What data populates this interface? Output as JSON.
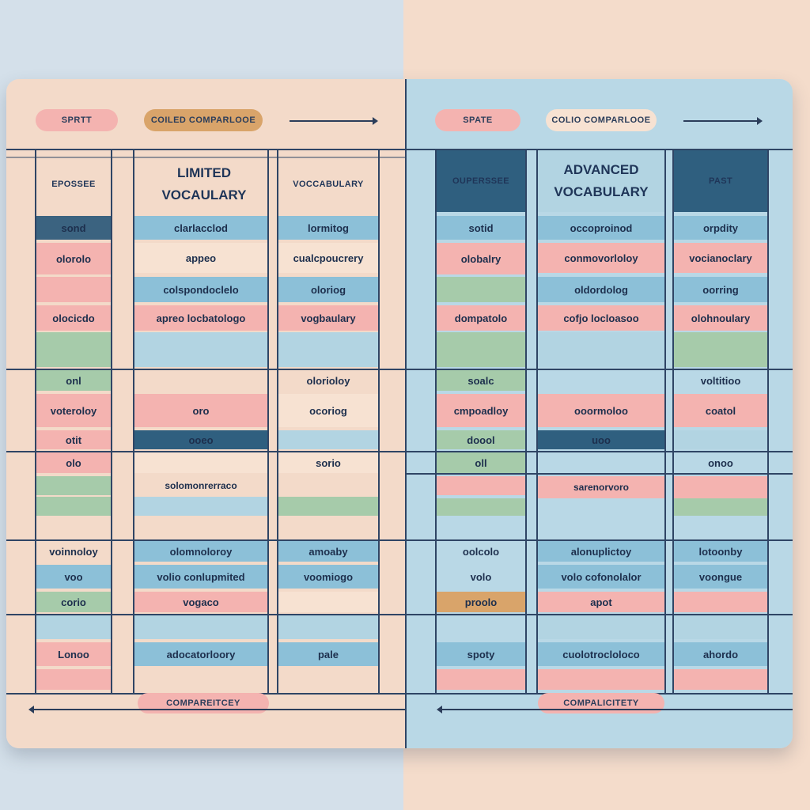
{
  "colors": {
    "pink": "#f4b3b0",
    "blue": "#8cc0d8",
    "green": "#a6cbaa",
    "cream": "#f7e2d2",
    "navy": "#2f5f7f",
    "dark_navy": "#3b6380",
    "light_blue": "#b2d4e2",
    "orange": "#d9a46a"
  },
  "left_panel": {
    "pill_1": "SPRTT",
    "pill_2": "COILED COMPARLOOE",
    "header_col1": "EPOSSEE",
    "header_col2": "LIMITED VOCAULARY",
    "header_col3": "VOCCABULARY",
    "footer_pill": "COMPAREITCEY",
    "rows_group1": [
      {
        "c1": "sond",
        "c2": "clarlacclod",
        "c3": "lormitog"
      },
      {
        "c1": "olorolo",
        "c2": "appeo",
        "c3": "cualcpoucrery"
      },
      {
        "c1": "",
        "c2": "colspondoclelo",
        "c3": "oloriog"
      },
      {
        "c1": "olocicdo",
        "c2": "apreo locbatologo",
        "c3": "vogbaulary"
      }
    ],
    "rows_group2": [
      {
        "c1": "onl",
        "c2": "",
        "c3": "olorioloy"
      },
      {
        "c1": "voteroloy",
        "c2": "oro",
        "c3": "ocoriog"
      },
      {
        "c1": "otit",
        "c2": "ooeo",
        "c3": ""
      },
      {
        "c1": "olo",
        "c2": "",
        "c3": "sorio"
      },
      {
        "c1": "",
        "c2": "solomonrerraco",
        "c3": ""
      }
    ],
    "rows_group3": [
      {
        "c1": "voinnoloy",
        "c2": "olomnoloroy",
        "c3": "amoaby"
      },
      {
        "c1": "voo",
        "c2": "volio conlupmited",
        "c3": "voomiogo"
      },
      {
        "c1": "corio",
        "c2": "vogaco",
        "c3": ""
      },
      {
        "c1": "Lonoo",
        "c2": "adocatorloory",
        "c3": "pale"
      }
    ]
  },
  "right_panel": {
    "pill_1": "SPATE",
    "pill_2": "COLIO COMPARLOOE",
    "header_col1": "OUPERSSEE",
    "header_col2": "ADVANCED VOCABULARY",
    "header_col3": "PAST",
    "footer_pill": "COMPALICITETY",
    "rows_group1": [
      {
        "c1": "sotid",
        "c2": "occoproinod",
        "c3": "orpdity"
      },
      {
        "c1": "olobalry",
        "c2": "conmovorloloy",
        "c3": "vocianoclary"
      },
      {
        "c1": "",
        "c2": "oldordolog",
        "c3": "oorring"
      },
      {
        "c1": "dompatolo",
        "c2": "cofjo locloasoo",
        "c3": "olohnoulary"
      }
    ],
    "rows_group2": [
      {
        "c1": "soalc",
        "c2": "",
        "c3": "voltitioo"
      },
      {
        "c1": "cmpoadloy",
        "c2": "ooormoloo",
        "c3": "coatol"
      },
      {
        "c1": "doool",
        "c2": "uoo",
        "c3": ""
      },
      {
        "c1": "oll",
        "c2": "",
        "c3": "onoo"
      },
      {
        "c1": "",
        "c2": "sarenorvoro",
        "c3": ""
      }
    ],
    "rows_group3": [
      {
        "c1": "oolcolo",
        "c2": "alonuplictoy",
        "c3": "lotoonby"
      },
      {
        "c1": "volo",
        "c2": "volo cofonolalor",
        "c3": "voongue"
      },
      {
        "c1": "proolo",
        "c2": "apot",
        "c3": ""
      },
      {
        "c1": "spoty",
        "c2": "cuolotrocloloco",
        "c3": "ahordo"
      }
    ]
  }
}
